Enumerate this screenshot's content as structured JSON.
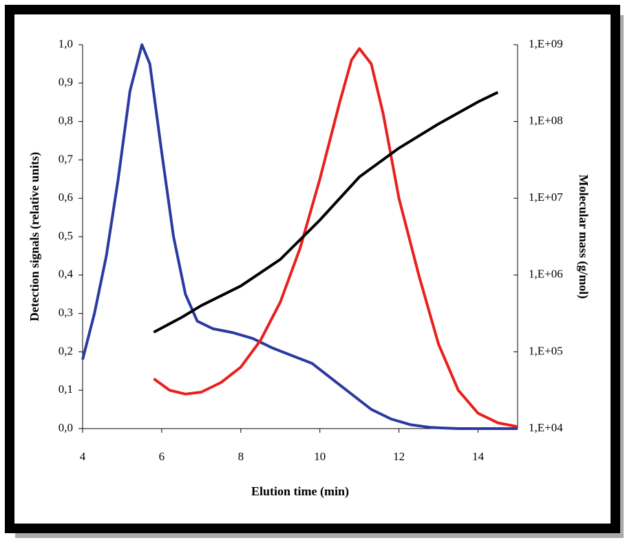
{
  "chart_data": {
    "type": "line",
    "xlabel": "Elution time (min)",
    "ylabel": "Detection signals (relative units)",
    "y2label": "Molecular mass (g/mol)",
    "xlim": [
      4,
      15
    ],
    "xticks": [
      4,
      6,
      8,
      10,
      12,
      14
    ],
    "ylim": [
      0,
      1
    ],
    "yticks": [
      {
        "value": 0,
        "label": "0,0"
      },
      {
        "value": 0.1,
        "label": "0,1"
      },
      {
        "value": 0.2,
        "label": "0,2"
      },
      {
        "value": 0.3,
        "label": "0,3"
      },
      {
        "value": 0.4,
        "label": "0,4"
      },
      {
        "value": 0.5,
        "label": "0,5"
      },
      {
        "value": 0.6,
        "label": "0,6"
      },
      {
        "value": 0.7,
        "label": "0,7"
      },
      {
        "value": 0.8,
        "label": "0,8"
      },
      {
        "value": 0.9,
        "label": "0,9"
      },
      {
        "value": 1,
        "label": "1,0"
      }
    ],
    "y2lim": [
      10000,
      1000000000
    ],
    "y2log": true,
    "y2ticks": [
      {
        "value": 10000,
        "label": "1,E+04"
      },
      {
        "value": 100000,
        "label": "1,E+05"
      },
      {
        "value": 1000000,
        "label": "1,E+06"
      },
      {
        "value": 10000000,
        "label": "1,E+07"
      },
      {
        "value": 100000000,
        "label": "1,E+08"
      },
      {
        "value": 1000000000,
        "label": "1,E+09"
      }
    ],
    "series": [
      {
        "color": "#2b3aa0",
        "x": [
          4.0,
          4.3,
          4.6,
          4.9,
          5.2,
          5.5,
          5.7,
          6.0,
          6.3,
          6.6,
          6.9,
          7.3,
          7.8,
          8.3,
          8.8,
          9.3,
          9.8,
          10.3,
          10.8,
          11.3,
          11.8,
          12.3,
          12.8,
          13.5,
          15.0
        ],
        "values": [
          0.18,
          0.3,
          0.45,
          0.65,
          0.88,
          1.0,
          0.95,
          0.72,
          0.5,
          0.35,
          0.28,
          0.26,
          0.25,
          0.235,
          0.21,
          0.19,
          0.17,
          0.13,
          0.09,
          0.05,
          0.025,
          0.01,
          0.003,
          0.0,
          0.0
        ]
      },
      {
        "color": "#e8201e",
        "x": [
          5.8,
          6.2,
          6.6,
          7.0,
          7.5,
          8.0,
          8.5,
          9.0,
          9.5,
          10.0,
          10.5,
          10.8,
          11.0,
          11.3,
          11.6,
          12.0,
          12.5,
          13.0,
          13.5,
          14.0,
          14.5,
          15.0
        ],
        "values": [
          0.13,
          0.1,
          0.09,
          0.095,
          0.12,
          0.16,
          0.23,
          0.33,
          0.47,
          0.65,
          0.85,
          0.96,
          0.99,
          0.95,
          0.82,
          0.6,
          0.4,
          0.22,
          0.1,
          0.04,
          0.015,
          0.005
        ]
      },
      {
        "color": "#000000",
        "axis": "y2",
        "x": [
          5.8,
          6.5,
          7.0,
          8.0,
          9.0,
          10.0,
          11.0,
          12.0,
          13.0,
          14.0,
          14.5
        ],
        "values": [
          180000,
          280000,
          400000,
          720000,
          1600000,
          5200000,
          19000000,
          45000000,
          93000000,
          180000000,
          240000000
        ]
      }
    ]
  }
}
